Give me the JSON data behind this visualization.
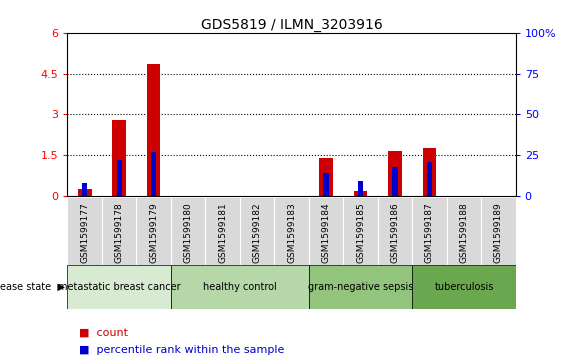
{
  "title": "GDS5819 / ILMN_3203916",
  "samples": [
    "GSM1599177",
    "GSM1599178",
    "GSM1599179",
    "GSM1599180",
    "GSM1599181",
    "GSM1599182",
    "GSM1599183",
    "GSM1599184",
    "GSM1599185",
    "GSM1599186",
    "GSM1599187",
    "GSM1599188",
    "GSM1599189"
  ],
  "count_values": [
    0.25,
    2.8,
    4.85,
    0.0,
    0.0,
    0.0,
    0.0,
    1.4,
    0.2,
    1.65,
    1.75,
    0.0,
    0.0
  ],
  "percentile_values": [
    8.0,
    22.0,
    27.0,
    0.0,
    0.0,
    0.0,
    0.0,
    14.0,
    9.0,
    18.0,
    21.0,
    0.0,
    0.0
  ],
  "groups": [
    {
      "label": "metastatic breast cancer",
      "start": 0,
      "end": 3,
      "color": "#d9ead3"
    },
    {
      "label": "healthy control",
      "start": 3,
      "end": 7,
      "color": "#b6d7a8"
    },
    {
      "label": "gram-negative sepsis",
      "start": 7,
      "end": 10,
      "color": "#93c47d"
    },
    {
      "label": "tuberculosis",
      "start": 10,
      "end": 13,
      "color": "#6aa84f"
    }
  ],
  "ylim_left": [
    0,
    6
  ],
  "ylim_right": [
    0,
    100
  ],
  "yticks_left": [
    0,
    1.5,
    3.0,
    4.5,
    6.0
  ],
  "ytick_labels_left": [
    "0",
    "1.5",
    "3",
    "4.5",
    "6"
  ],
  "yticks_right": [
    0,
    25,
    50,
    75,
    100
  ],
  "ytick_labels_right": [
    "0",
    "25",
    "50",
    "75",
    "100%"
  ],
  "bar_color_red": "#cc0000",
  "bar_color_blue": "#0000cc",
  "bar_width": 0.4,
  "blue_bar_width": 0.15,
  "grid_lines": [
    1.5,
    3.0,
    4.5
  ],
  "tick_bg_color": "#d9d9d9",
  "disease_state_label": "disease state"
}
